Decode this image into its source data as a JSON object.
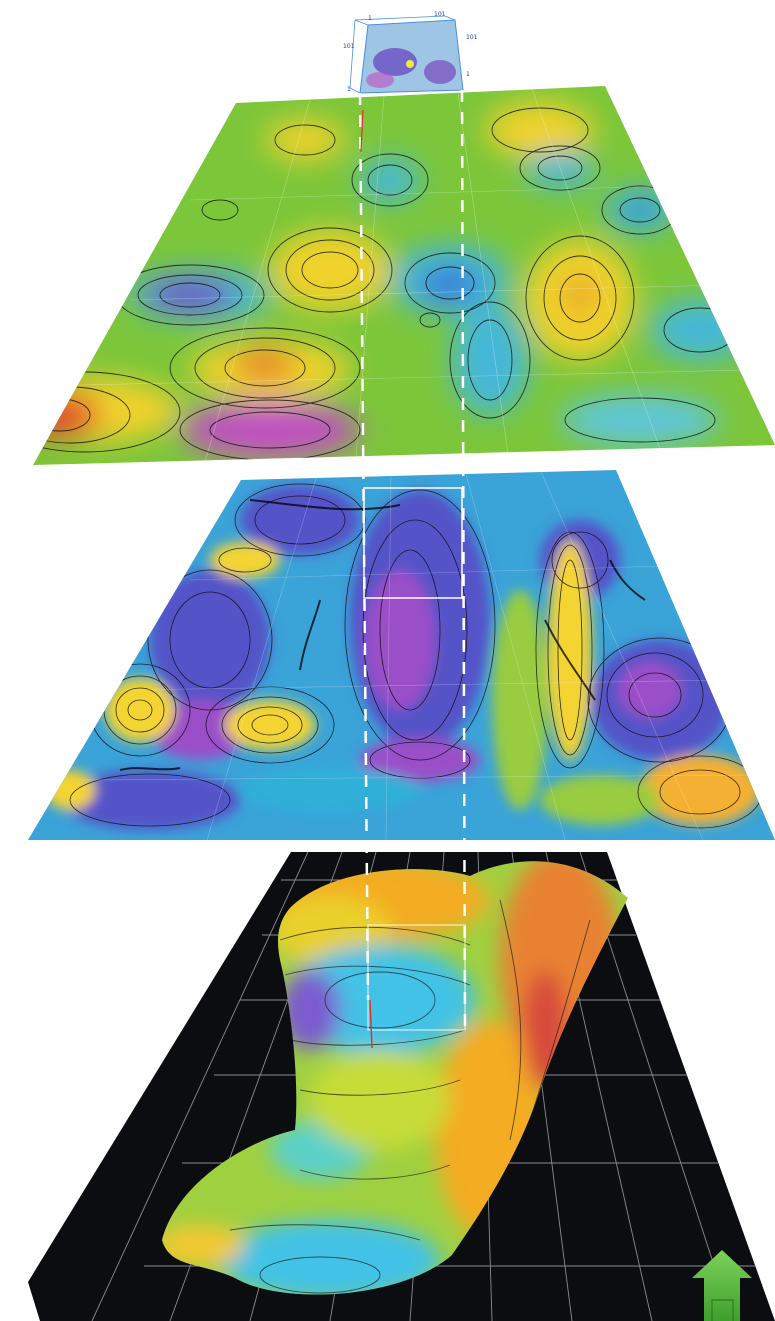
{
  "inset_cube": {
    "labels": {
      "top_left": "1",
      "top_right": "101",
      "right_upper": "101",
      "left_upper": "101",
      "right_lower": "1",
      "bottom_left": "1"
    }
  },
  "layers": [
    {
      "id": "smooth-surface",
      "palette": [
        "#e2452c",
        "#f0d22a",
        "#7cc63a",
        "#44b8d8",
        "#2f8ad8",
        "#6c48c8",
        "#c14fc3"
      ]
    },
    {
      "id": "detailed-surface",
      "palette": [
        "#f4d430",
        "#99cc40",
        "#3aa3d8",
        "#5452c8",
        "#9a4fc8"
      ]
    },
    {
      "id": "terrain-surface",
      "palette": [
        "#f4ac22",
        "#e88230",
        "#d84a3a",
        "#9fd040",
        "#42c2e6",
        "#7c5ccf"
      ]
    }
  ],
  "colors": {
    "terrain_ground": "#0c0d10",
    "grid": "#a9aab5",
    "guide": "#ffffff",
    "north_arrow": "#55bb3a"
  }
}
